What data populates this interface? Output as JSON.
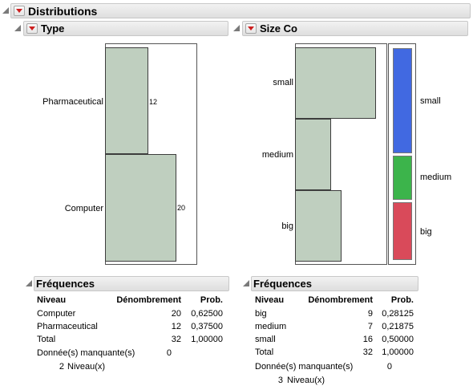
{
  "main": {
    "title": "Distributions"
  },
  "type_panel": {
    "title": "Type",
    "bars": [
      {
        "label": "Pharmaceutical",
        "count_label": "12",
        "count": 12
      },
      {
        "label": "Computer",
        "count_label": "20",
        "count": 20
      }
    ],
    "freq": {
      "title": "Fréquences",
      "col_level": "Niveau",
      "col_count": "Dénombrement",
      "col_prob": "Prob.",
      "rows": [
        {
          "level": "Computer",
          "count": "20",
          "prob": "0,62500"
        },
        {
          "level": "Pharmaceutical",
          "count": "12",
          "prob": "0,37500"
        },
        {
          "level": "Total",
          "count": "32",
          "prob": "1,00000"
        }
      ],
      "missing_label": "Donnée(s) manquante(s)",
      "missing_value": "0",
      "levels_count": "2",
      "levels_label": "Niveau(x)"
    }
  },
  "size_panel": {
    "title": "Size Co",
    "bars": [
      {
        "label": "small",
        "count": 16
      },
      {
        "label": "medium",
        "count": 7
      },
      {
        "label": "big",
        "count": 9
      }
    ],
    "mosaic": [
      {
        "label": "small",
        "color": "#4169e1"
      },
      {
        "label": "medium",
        "color": "#3cb44b"
      },
      {
        "label": "big",
        "color": "#d94a5a"
      }
    ],
    "freq": {
      "title": "Fréquences",
      "col_level": "Niveau",
      "col_count": "Dénombrement",
      "col_prob": "Prob.",
      "rows": [
        {
          "level": "big",
          "count": "9",
          "prob": "0,28125"
        },
        {
          "level": "medium",
          "count": "7",
          "prob": "0,21875"
        },
        {
          "level": "small",
          "count": "16",
          "prob": "0,50000"
        },
        {
          "level": "Total",
          "count": "32",
          "prob": "1,00000"
        }
      ],
      "missing_label": "Donnée(s) manquante(s)",
      "missing_value": "0",
      "levels_count": "3",
      "levels_label": "Niveau(x)"
    }
  }
}
